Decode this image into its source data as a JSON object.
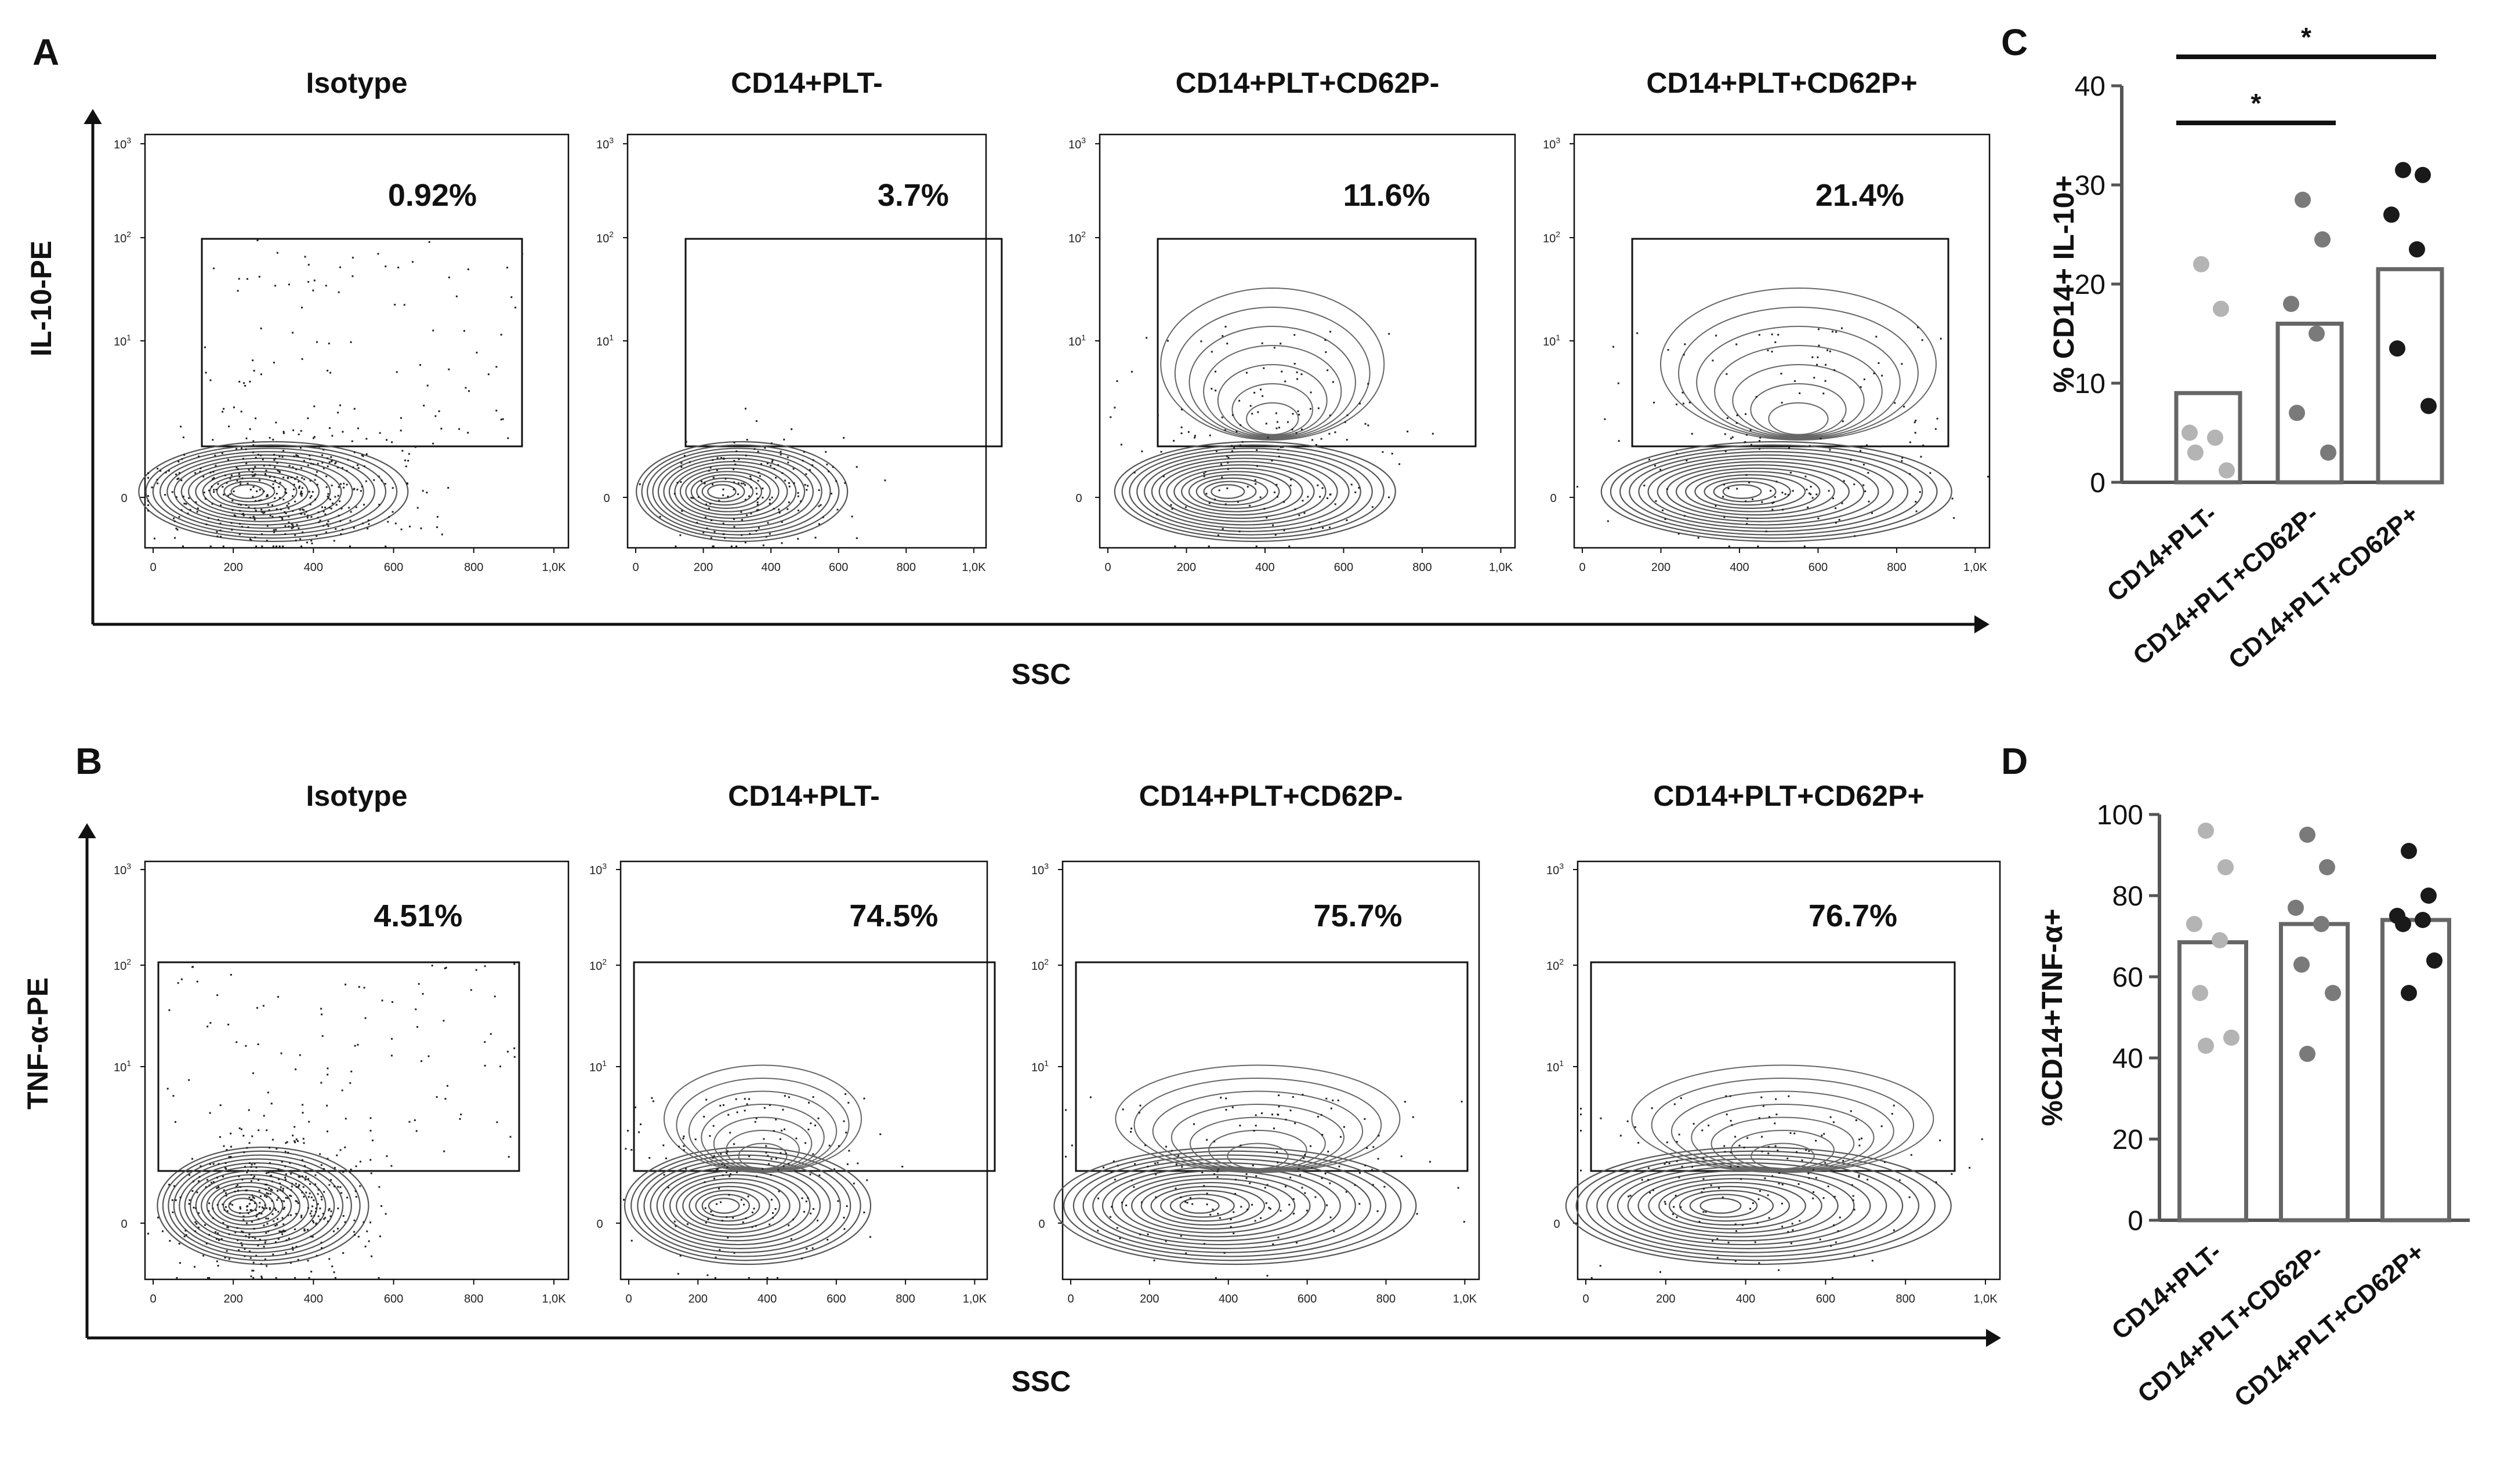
{
  "figure": {
    "panel_letters": {
      "A": "A",
      "B": "B",
      "C": "C",
      "D": "D"
    },
    "scale": {
      "x_ticks": [
        "0",
        "200",
        "400",
        "600",
        "800",
        "1,0K"
      ]
    }
  },
  "chart_data": [
    {
      "panel": "A",
      "type": "scatter",
      "subtype": "flow cytometry contour plots",
      "ylabel": "IL-10-PE",
      "xlabel": "SSC",
      "x_ticks": [
        "0",
        "200",
        "400",
        "600",
        "800",
        "1,0K"
      ],
      "y_ticks": [
        {
          "label": "0"
        },
        {
          "base": "10",
          "exp": "1"
        },
        {
          "base": "10",
          "exp": "2"
        },
        {
          "base": "10",
          "exp": "3"
        }
      ],
      "plots": [
        {
          "title": "Isotype",
          "gate_percent": "0.92%",
          "population_center_ssc": 230,
          "upper_lobe": false,
          "style": "dots+contours"
        },
        {
          "title": "CD14+PLT-",
          "gate_percent": "3.7%",
          "population_center_ssc": 250,
          "upper_lobe": false,
          "style": "contours"
        },
        {
          "title": "CD14+PLT+CD62P-",
          "gate_percent": "11.6%",
          "population_center_ssc": 300,
          "upper_lobe": true,
          "style": "contours"
        },
        {
          "title": "CD14+PLT+CD62P+",
          "gate_percent": "21.4%",
          "population_center_ssc": 400,
          "upper_lobe": true,
          "style": "contours"
        }
      ]
    },
    {
      "panel": "B",
      "type": "scatter",
      "subtype": "flow cytometry contour plots",
      "ylabel": "TNF-α-PE",
      "xlabel": "SSC",
      "x_ticks": [
        "0",
        "200",
        "400",
        "600",
        "800",
        "1,0K"
      ],
      "y_ticks": [
        {
          "label": "0"
        },
        {
          "base": "10",
          "exp": "1"
        },
        {
          "base": "10",
          "exp": "2"
        },
        {
          "base": "10",
          "exp": "3"
        }
      ],
      "plots": [
        {
          "title": "Isotype",
          "gate_percent": "4.51%",
          "population_center_ssc": 220,
          "upper_lobe": false,
          "style": "dots+contours"
        },
        {
          "title": "CD14+PLT-",
          "gate_percent": "74.5%",
          "population_center_ssc": 270,
          "upper_lobe": true,
          "style": "contours"
        },
        {
          "title": "CD14+PLT+CD62P-",
          "gate_percent": "75.7%",
          "population_center_ssc": 320,
          "upper_lobe": true,
          "style": "contours"
        },
        {
          "title": "CD14+PLT+CD62P+",
          "gate_percent": "76.7%",
          "population_center_ssc": 330,
          "upper_lobe": true,
          "style": "contours"
        }
      ]
    },
    {
      "panel": "C",
      "type": "bar",
      "ylabel": "% CD14+ IL-10+",
      "ylim": [
        0,
        40
      ],
      "y_ticks": [
        "0",
        "10",
        "20",
        "30",
        "40"
      ],
      "categories": [
        "CD14+PLT-",
        "CD14+PLT+CD62P-",
        "CD14+PLT+CD62P+"
      ],
      "values": [
        9,
        16,
        21.5
      ],
      "points": [
        [
          22,
          17.5,
          5,
          4.5,
          3,
          1.2
        ],
        [
          28.5,
          24.5,
          18,
          15,
          7,
          3
        ],
        [
          31.5,
          31,
          27,
          23.5,
          13.5,
          7.7
        ]
      ],
      "point_colors": [
        "#b4b4b4",
        "#7a7a7a",
        "#1a1a1a"
      ],
      "significance": [
        {
          "from": 0,
          "to": 1,
          "label": "*"
        },
        {
          "from": 0,
          "to": 2,
          "label": "*"
        }
      ]
    },
    {
      "panel": "D",
      "type": "bar",
      "ylabel": "%CD14+TNF-α+",
      "ylim": [
        0,
        100
      ],
      "y_ticks": [
        "0",
        "20",
        "40",
        "60",
        "80",
        "100"
      ],
      "categories": [
        "CD14+PLT-",
        "CD14+PLT+CD62P-",
        "CD14+PLT+CD62P+"
      ],
      "values": [
        68.5,
        73,
        74
      ],
      "points": [
        [
          96,
          87,
          73,
          69,
          56,
          45,
          43
        ],
        [
          95,
          87,
          77,
          73,
          63,
          56,
          41
        ],
        [
          91,
          80,
          75,
          74,
          73,
          64,
          56
        ]
      ],
      "point_colors": [
        "#b4b4b4",
        "#7a7a7a",
        "#1a1a1a"
      ],
      "significance": []
    }
  ]
}
